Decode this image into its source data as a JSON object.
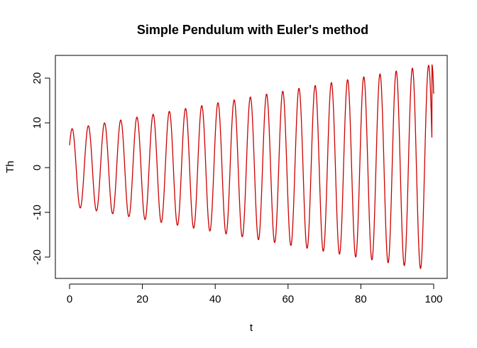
{
  "chart_data": {
    "type": "line",
    "title": "Simple Pendulum with Euler's method",
    "xlabel": "t",
    "ylabel": "Th",
    "xlim": [
      0,
      100
    ],
    "ylim": [
      -24,
      24
    ],
    "xticks": [
      0,
      20,
      40,
      60,
      80,
      100
    ],
    "yticks": [
      -20,
      -10,
      0,
      10,
      20
    ],
    "grid": false,
    "line_color": "#cc0000",
    "series": [
      {
        "generator": "euler_pendulum",
        "t_start": 0,
        "t_end": 100,
        "theta_start": 5,
        "first_peak": [
          0.7,
          8.7
        ],
        "last_trough": [
          97.3,
          -22.6
        ],
        "last_peak": [
          99.5,
          23.0
        ],
        "period": 4.45,
        "envelope_start": 8.7,
        "envelope_end": 23.0,
        "t_end_value": 16.5
      }
    ]
  }
}
